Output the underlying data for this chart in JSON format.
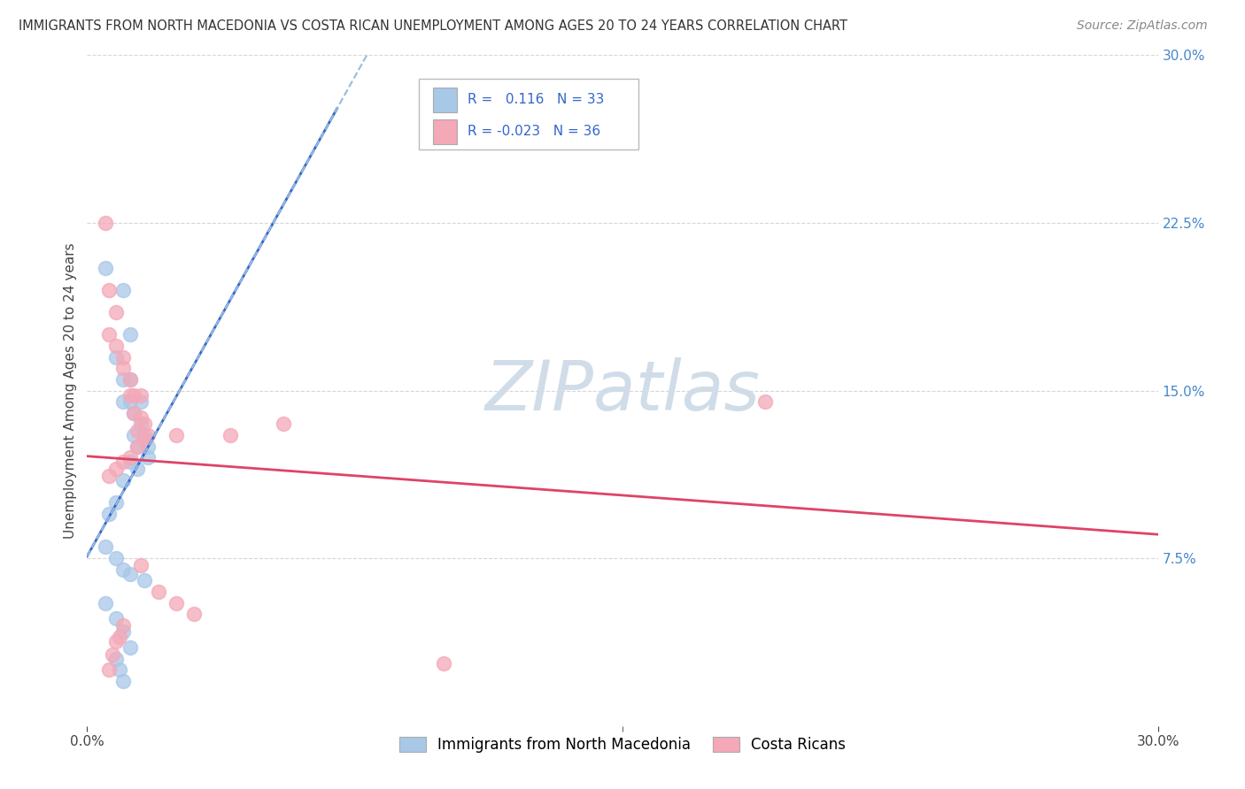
{
  "title": "IMMIGRANTS FROM NORTH MACEDONIA VS COSTA RICAN UNEMPLOYMENT AMONG AGES 20 TO 24 YEARS CORRELATION CHART",
  "source": "Source: ZipAtlas.com",
  "ylabel": "Unemployment Among Ages 20 to 24 years",
  "legend_label1": "Immigrants from North Macedonia",
  "legend_label2": "Costa Ricans",
  "R_blue": 0.116,
  "R_pink": -0.023,
  "N_blue": 33,
  "N_pink": 36,
  "blue_color": "#a8c8e8",
  "pink_color": "#f4a8b8",
  "blue_line_color": "#3366cc",
  "pink_line_color": "#dd4466",
  "blue_dash_color": "#99bbdd",
  "watermark_color": "#d0dde8",
  "background_color": "#ffffff",
  "grid_color": "#cccccc",
  "xlim": [
    0.0,
    0.3
  ],
  "ylim": [
    0.0,
    0.3
  ],
  "blue_scatter": [
    [
      0.005,
      0.205
    ],
    [
      0.01,
      0.195
    ],
    [
      0.012,
      0.175
    ],
    [
      0.008,
      0.165
    ],
    [
      0.01,
      0.155
    ],
    [
      0.012,
      0.155
    ],
    [
      0.01,
      0.145
    ],
    [
      0.012,
      0.145
    ],
    [
      0.015,
      0.145
    ],
    [
      0.013,
      0.14
    ],
    [
      0.015,
      0.135
    ],
    [
      0.016,
      0.13
    ],
    [
      0.013,
      0.13
    ],
    [
      0.014,
      0.125
    ],
    [
      0.017,
      0.125
    ],
    [
      0.017,
      0.12
    ],
    [
      0.012,
      0.118
    ],
    [
      0.014,
      0.115
    ],
    [
      0.01,
      0.11
    ],
    [
      0.008,
      0.1
    ],
    [
      0.006,
      0.095
    ],
    [
      0.005,
      0.08
    ],
    [
      0.008,
      0.075
    ],
    [
      0.01,
      0.07
    ],
    [
      0.012,
      0.068
    ],
    [
      0.016,
      0.065
    ],
    [
      0.005,
      0.055
    ],
    [
      0.008,
      0.048
    ],
    [
      0.01,
      0.042
    ],
    [
      0.012,
      0.035
    ],
    [
      0.008,
      0.03
    ],
    [
      0.009,
      0.025
    ],
    [
      0.01,
      0.02
    ]
  ],
  "pink_scatter": [
    [
      0.005,
      0.225
    ],
    [
      0.006,
      0.195
    ],
    [
      0.008,
      0.185
    ],
    [
      0.006,
      0.175
    ],
    [
      0.008,
      0.17
    ],
    [
      0.01,
      0.165
    ],
    [
      0.01,
      0.16
    ],
    [
      0.012,
      0.155
    ],
    [
      0.012,
      0.148
    ],
    [
      0.013,
      0.148
    ],
    [
      0.015,
      0.148
    ],
    [
      0.013,
      0.14
    ],
    [
      0.015,
      0.138
    ],
    [
      0.016,
      0.135
    ],
    [
      0.014,
      0.132
    ],
    [
      0.017,
      0.13
    ],
    [
      0.016,
      0.128
    ],
    [
      0.014,
      0.125
    ],
    [
      0.012,
      0.12
    ],
    [
      0.01,
      0.118
    ],
    [
      0.008,
      0.115
    ],
    [
      0.006,
      0.112
    ],
    [
      0.025,
      0.13
    ],
    [
      0.04,
      0.13
    ],
    [
      0.055,
      0.135
    ],
    [
      0.19,
      0.145
    ],
    [
      0.015,
      0.072
    ],
    [
      0.02,
      0.06
    ],
    [
      0.025,
      0.055
    ],
    [
      0.03,
      0.05
    ],
    [
      0.01,
      0.045
    ],
    [
      0.009,
      0.04
    ],
    [
      0.008,
      0.038
    ],
    [
      0.007,
      0.032
    ],
    [
      0.006,
      0.025
    ],
    [
      0.1,
      0.028
    ]
  ]
}
